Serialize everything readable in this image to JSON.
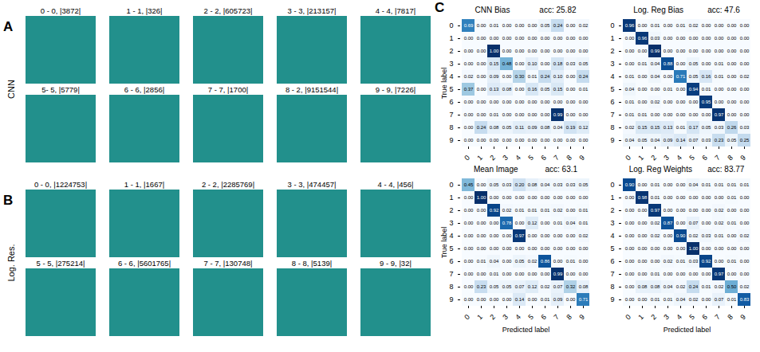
{
  "image_panels": [
    {
      "letter": "A",
      "row_label": "CNN",
      "titles": [
        "0 - 0, |3872|",
        "1 - 1, |326|",
        "2 - 2, |605723|",
        "3 - 3, |213157|",
        "4 - 4, |7817|",
        "5- 5, |5779|",
        "6 - 6, |2856|",
        "7 - 7, |1700|",
        "8 - 2, |9151544|",
        "9 - 9, |7226|"
      ]
    },
    {
      "letter": "B",
      "row_label": "Log. Res.",
      "titles": [
        "0 - 0, |1224753|",
        "1 - 1, |1667|",
        "2 - 2, |2285769|",
        "3 - 3, |474457|",
        "4 - 4, |456|",
        "5 - 5, |275214|",
        "6 - 6, |5601765|",
        "7 - 7, |130748|",
        "8 - 8, |5139|",
        "9 - 9, |32|"
      ]
    }
  ],
  "panel_letter": "C",
  "chart_data": [
    {
      "type": "heatmap",
      "title": "CNN Bias",
      "subtitle": "acc: 25.82",
      "y_label": "True label",
      "x": [
        0,
        1,
        2,
        3,
        4,
        5,
        6,
        7,
        8,
        9
      ],
      "y": [
        0,
        1,
        2,
        3,
        4,
        5,
        6,
        7,
        8,
        9
      ],
      "data_labels": true,
      "values": [
        [
          0.69,
          0.0,
          0.01,
          0.0,
          0.0,
          0.0,
          0.05,
          0.24,
          0.0,
          0.02
        ],
        [
          0.0,
          0.0,
          0.0,
          0.0,
          0.0,
          0.0,
          0.0,
          0.0,
          0.0,
          0.0
        ],
        [
          0.0,
          0.0,
          1.0,
          0.0,
          0.0,
          0.0,
          0.0,
          0.0,
          0.0,
          0.0
        ],
        [
          0.0,
          0.0,
          0.15,
          0.48,
          0.0,
          0.1,
          0.0,
          0.18,
          0.03,
          0.05
        ],
        [
          0.02,
          0.0,
          0.09,
          0.0,
          0.3,
          0.01,
          0.24,
          0.1,
          0.0,
          0.24
        ],
        [
          0.37,
          0.0,
          0.13,
          0.08,
          0.0,
          0.16,
          0.05,
          0.15,
          0.0,
          0.01
        ],
        [
          0.0,
          0.0,
          0.0,
          0.0,
          0.0,
          0.0,
          0.0,
          0.0,
          0.0,
          0.0
        ],
        [
          0.0,
          0.0,
          0.01,
          0.0,
          0.0,
          0.0,
          0.0,
          0.99,
          0.0,
          0.0
        ],
        [
          0.0,
          0.24,
          0.08,
          0.05,
          0.11,
          0.09,
          0.08,
          0.04,
          0.19,
          0.12
        ],
        [
          0.0,
          0.0,
          0.0,
          0.0,
          0.0,
          0.0,
          0.0,
          0.0,
          0.0,
          0.0
        ]
      ],
      "value_labels": [
        [
          "0.69",
          "0.00",
          "0.01",
          "0.00",
          "0.00",
          "0.00",
          "0.05",
          "0.24",
          "0.00",
          "0.02"
        ],
        [
          "0.00",
          "0.00",
          "0.00",
          "0.00",
          "0.00",
          "0.00",
          "0.00",
          "0.00",
          "0.00",
          "0.00"
        ],
        [
          "0.00",
          "0.00",
          "1.00",
          "0.00",
          "0.00",
          "0.00",
          "0.00",
          "0.00",
          "0.00",
          "0.00"
        ],
        [
          "0.00",
          "0.00",
          "0.15",
          "0.48",
          "0.00",
          "0.10",
          "0.00",
          "0.18",
          "0.03",
          "0.05"
        ],
        [
          "0.02",
          "0.00",
          "0.09",
          "0.00",
          "0.30",
          "0.01",
          "0.24",
          "0.10",
          "0.00",
          "0.24"
        ],
        [
          "0.37",
          "0.00",
          "0.13",
          "0.08",
          "0.00",
          "0.16",
          "0.05",
          "0.15",
          "0.00",
          "0.01"
        ],
        [
          "0.00",
          "0.00",
          "0.00",
          "0.00",
          "0.00",
          "0.00",
          "0.00",
          "0.00",
          "0.00",
          "0.00"
        ],
        [
          "0.00",
          "0.00",
          "0.01",
          "0.00",
          "0.00",
          "0.00",
          "0.00",
          "0.99",
          "0.00",
          "0.00"
        ],
        [
          "0.00",
          "0.24",
          "0.08",
          "0.05",
          "0.11",
          "0.09",
          "0.08",
          "0.04",
          "0.19",
          "0.12"
        ],
        [
          "0.00",
          "0.00",
          "0.00",
          "0.00",
          "0.00",
          "0.00",
          "0.00",
          "0.00",
          "0.00",
          "0.00"
        ]
      ]
    },
    {
      "type": "heatmap",
      "title": "Log. Reg Bias",
      "subtitle": "acc: 47.6",
      "x": [
        0,
        1,
        2,
        3,
        4,
        5,
        6,
        7,
        8,
        9
      ],
      "y": [
        0,
        1,
        2,
        3,
        4,
        5,
        6,
        7,
        8,
        9
      ],
      "data_labels": true,
      "values": [
        [
          0.96,
          0.0,
          0.01,
          0.0,
          0.01,
          0.02,
          0.0,
          0.0,
          0.0,
          0.0
        ],
        [
          0.0,
          0.96,
          0.03,
          0.0,
          0.0,
          0.0,
          0.0,
          0.0,
          0.0,
          0.0
        ],
        [
          0.0,
          0.0,
          0.99,
          0.0,
          0.0,
          0.0,
          0.0,
          0.0,
          0.0,
          0.0
        ],
        [
          0.0,
          0.01,
          0.04,
          0.88,
          0.0,
          0.05,
          0.0,
          0.01,
          0.0,
          0.0
        ],
        [
          0.01,
          0.0,
          0.04,
          0.0,
          0.71,
          0.05,
          0.16,
          0.01,
          0.0,
          0.02
        ],
        [
          0.04,
          0.0,
          0.0,
          0.01,
          0.0,
          0.94,
          0.01,
          0.0,
          0.0,
          0.0
        ],
        [
          0.01,
          0.0,
          0.02,
          0.0,
          0.0,
          0.0,
          0.95,
          0.0,
          0.0,
          0.0
        ],
        [
          0.01,
          0.01,
          0.0,
          0.0,
          0.0,
          0.0,
          0.0,
          0.97,
          0.0,
          0.0
        ],
        [
          0.02,
          0.15,
          0.15,
          0.13,
          0.01,
          0.17,
          0.05,
          0.03,
          0.26,
          0.03
        ],
        [
          0.04,
          0.05,
          0.04,
          0.09,
          0.14,
          0.07,
          0.03,
          0.23,
          0.05,
          0.25
        ]
      ],
      "value_labels": [
        [
          "0.96",
          "0.00",
          "0.01",
          "0.00",
          "0.01",
          "0.02",
          "0.00",
          "0.00",
          "0.00",
          "0.00"
        ],
        [
          "0.00",
          "0.96",
          "0.03",
          "0.00",
          "0.00",
          "0.00",
          "0.00",
          "0.00",
          "0.00",
          "0.00"
        ],
        [
          "0.00",
          "0.00",
          "0.99",
          "0.00",
          "0.00",
          "0.00",
          "0.00",
          "0.00",
          "0.00",
          "0.00"
        ],
        [
          "0.00",
          "0.01",
          "0.04",
          "0.88",
          "0.00",
          "0.05",
          "0.00",
          "0.01",
          "0.00",
          "0.00"
        ],
        [
          "0.01",
          "0.00",
          "0.04",
          "0.00",
          "0.71",
          "0.05",
          "0.16",
          "0.01",
          "0.00",
          "0.02"
        ],
        [
          "0.04",
          "0.00",
          "0.00",
          "0.01",
          "0.00",
          "0.94",
          "0.01",
          "0.00",
          "0.00",
          "0.00"
        ],
        [
          "0.01",
          "0.00",
          "0.02",
          "0.00",
          "0.00",
          "0.00",
          "0.95",
          "0.00",
          "0.00",
          "0.00"
        ],
        [
          "0.01",
          "0.01",
          "0.00",
          "0.00",
          "0.00",
          "0.00",
          "0.00",
          "0.97",
          "0.00",
          "0.00"
        ],
        [
          "0.02",
          "0.15",
          "0.15",
          "0.13",
          "0.01",
          "0.17",
          "0.05",
          "0.03",
          "0.26",
          "0.03"
        ],
        [
          "0.04",
          "0.05",
          "0.04",
          "0.09",
          "0.14",
          "0.07",
          "0.03",
          "0.23",
          "0.05",
          "0.25"
        ]
      ]
    },
    {
      "type": "heatmap",
      "title": "Mean Image",
      "subtitle": "acc: 63.1",
      "y_label": "True label",
      "x_label": "Predicted label",
      "x": [
        0,
        1,
        2,
        3,
        4,
        5,
        6,
        7,
        8,
        9
      ],
      "y": [
        0,
        1,
        2,
        3,
        4,
        5,
        6,
        7,
        8,
        9
      ],
      "data_labels": true,
      "values": [
        [
          0.45,
          0.0,
          0.05,
          0.03,
          0.2,
          0.08,
          0.04,
          0.03,
          0.03,
          0.05
        ],
        [
          0.0,
          1.0,
          0.0,
          0.0,
          0.0,
          0.0,
          0.0,
          0.0,
          0.0,
          0.0
        ],
        [
          0.0,
          0.0,
          0.92,
          0.02,
          0.01,
          0.01,
          0.01,
          0.02,
          0.0,
          0.01
        ],
        [
          0.0,
          0.0,
          0.0,
          0.78,
          0.0,
          0.12,
          0.0,
          0.01,
          0.04,
          0.01
        ],
        [
          0.0,
          0.0,
          0.0,
          0.0,
          0.97,
          0.0,
          0.0,
          0.0,
          0.0,
          0.02
        ],
        [
          0.0,
          0.0,
          0.0,
          0.0,
          0.0,
          0.0,
          0.0,
          0.0,
          0.0,
          0.0
        ],
        [
          0.0,
          0.01,
          0.04,
          0.0,
          0.05,
          0.02,
          0.86,
          0.0,
          0.01,
          0.0
        ],
        [
          0.0,
          0.0,
          0.01,
          0.0,
          0.0,
          0.0,
          0.0,
          0.99,
          0.0,
          0.0
        ],
        [
          0.0,
          0.23,
          0.05,
          0.05,
          0.07,
          0.12,
          0.02,
          0.07,
          0.32,
          0.08
        ],
        [
          0.0,
          0.0,
          0.0,
          0.0,
          0.14,
          0.0,
          0.01,
          0.09,
          0.0,
          0.71
        ]
      ],
      "value_labels": [
        [
          "0.45",
          "0.00",
          "0.05",
          "0.03",
          "0.20",
          "0.08",
          "0.04",
          "0.03",
          "0.03",
          "0.05"
        ],
        [
          "0.00",
          "1.00",
          "0.00",
          "0.00",
          "0.00",
          "0.00",
          "0.00",
          "0.00",
          "0.00",
          "0.00"
        ],
        [
          "0.00",
          "0.00",
          "0.92",
          "0.02",
          "0.01",
          "0.01",
          "0.01",
          "0.02",
          "0.00",
          "0.01"
        ],
        [
          "0.00",
          "0.00",
          "0.00",
          "0.78",
          "0.00",
          "0.12",
          "0.00",
          "0.01",
          "0.04",
          "0.01"
        ],
        [
          "0.00",
          "0.00",
          "0.00",
          "0.00",
          "0.97",
          "0.00",
          "0.00",
          "0.00",
          "0.00",
          "0.02"
        ],
        [
          "0.00",
          "0.00",
          "0.00",
          "0.00",
          "0.00",
          "0.00",
          "0.00",
          "0.00",
          "0.00",
          "0.00"
        ],
        [
          "0.00",
          "0.01",
          "0.04",
          "0.00",
          "0.05",
          "0.02",
          "0.86",
          "0.00",
          "0.01",
          "0.00"
        ],
        [
          "0.00",
          "0.00",
          "0.01",
          "0.00",
          "0.00",
          "0.00",
          "0.00",
          "0.99",
          "0.00",
          "0.00"
        ],
        [
          "0.00",
          "0.23",
          "0.05",
          "0.05",
          "0.07",
          "0.12",
          "0.02",
          "0.07",
          "0.32",
          "0.08"
        ],
        [
          "0.00",
          "0.00",
          "0.00",
          "0.00",
          "0.14",
          "0.00",
          "0.01",
          "0.09",
          "0.00",
          "0.71"
        ]
      ]
    },
    {
      "type": "heatmap",
      "title": "Log. Reg Weights",
      "subtitle": "acc: 83.77",
      "x_label": "Predicted label",
      "x": [
        0,
        1,
        2,
        3,
        4,
        5,
        6,
        7,
        8,
        9
      ],
      "y": [
        0,
        1,
        2,
        3,
        4,
        5,
        6,
        7,
        8,
        9
      ],
      "data_labels": true,
      "values": [
        [
          0.9,
          0.0,
          0.01,
          0.0,
          0.0,
          0.04,
          0.01,
          0.01,
          0.01,
          0.01
        ],
        [
          0.0,
          0.98,
          0.01,
          0.0,
          0.0,
          0.0,
          0.0,
          0.0,
          0.01,
          0.0
        ],
        [
          0.0,
          0.0,
          0.97,
          0.0,
          0.0,
          0.0,
          0.0,
          0.02,
          0.0,
          0.0
        ],
        [
          0.0,
          0.0,
          0.02,
          0.87,
          0.0,
          0.07,
          0.0,
          0.02,
          0.01,
          0.0
        ],
        [
          0.0,
          0.0,
          0.02,
          0.0,
          0.9,
          0.02,
          0.03,
          0.01,
          0.0,
          0.02
        ],
        [
          0.0,
          0.0,
          0.0,
          0.0,
          0.0,
          1.0,
          0.0,
          0.0,
          0.0,
          0.0
        ],
        [
          0.0,
          0.0,
          0.0,
          0.02,
          0.01,
          0.03,
          0.92,
          0.0,
          0.01,
          0.0
        ],
        [
          0.0,
          0.0,
          0.01,
          0.0,
          0.0,
          0.0,
          0.0,
          0.97,
          0.0,
          0.0
        ],
        [
          0.0,
          0.08,
          0.08,
          0.04,
          0.02,
          0.24,
          0.01,
          0.02,
          0.5,
          0.02
        ],
        [
          0.0,
          0.0,
          0.01,
          0.01,
          0.04,
          0.02,
          0.0,
          0.07,
          0.01,
          0.83
        ]
      ],
      "value_labels": [
        [
          "0.90",
          "0.00",
          "0.01",
          "0.00",
          "0.00",
          "0.04",
          "0.01",
          "0.01",
          "0.01",
          "0.01"
        ],
        [
          "0.00",
          "0.98",
          "0.01",
          "0.00",
          "0.00",
          "0.00",
          "0.00",
          "0.00",
          "0.01",
          "0.00"
        ],
        [
          "0.00",
          "0.00",
          "0.97",
          "0.00",
          "0.00",
          "0.00",
          "0.00",
          "0.02",
          "0.00",
          "0.00"
        ],
        [
          "0.00",
          "0.00",
          "0.02",
          "0.87",
          "0.00",
          "0.07",
          "0.00",
          "0.02",
          "0.01",
          "0.00"
        ],
        [
          "0.00",
          "0.00",
          "0.02",
          "0.00",
          "0.90",
          "0.02",
          "0.03",
          "0.01",
          "0.00",
          "0.02"
        ],
        [
          "0.00",
          "0.00",
          "0.00",
          "0.00",
          "0.00",
          "1.00",
          "0.00",
          "0.00",
          "0.00",
          "0.00"
        ],
        [
          "0.00",
          "0.00",
          "0.00",
          "0.02",
          "0.01",
          "0.03",
          "0.92",
          "0.00",
          "0.01",
          "0.00"
        ],
        [
          "0.00",
          "0.00",
          "0.01",
          "0.00",
          "0.00",
          "0.00",
          "0.00",
          "0.97",
          "0.00",
          "0.00"
        ],
        [
          "0.00",
          "0.08",
          "0.08",
          "0.04",
          "0.02",
          "0.24",
          "0.01",
          "0.02",
          "0.50",
          "0.02"
        ],
        [
          "0.00",
          "0.00",
          "0.01",
          "0.01",
          "0.04",
          "0.02",
          "0.00",
          "0.07",
          "0.01",
          "0.83"
        ]
      ]
    }
  ]
}
